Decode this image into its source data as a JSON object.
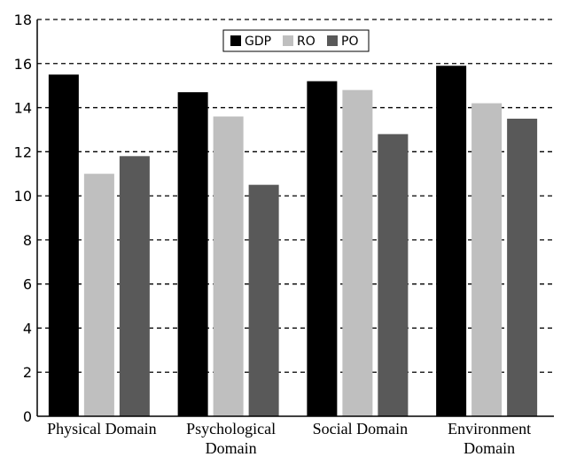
{
  "chart_data": {
    "type": "bar",
    "categories": [
      [
        "Physical Domain"
      ],
      [
        "Psychological",
        "Domain"
      ],
      [
        "Social Domain"
      ],
      [
        "Environment",
        "Domain"
      ]
    ],
    "series": [
      {
        "name": "GDP",
        "color": "#000000",
        "values": [
          15.5,
          14.7,
          15.2,
          15.9
        ]
      },
      {
        "name": "RO",
        "color": "#bfbfbf",
        "values": [
          11.0,
          13.6,
          14.8,
          14.2
        ]
      },
      {
        "name": "PO",
        "color": "#595959",
        "values": [
          11.8,
          10.5,
          12.8,
          13.5
        ]
      }
    ],
    "ylim": [
      0,
      18
    ],
    "yticks": [
      0,
      2,
      4,
      6,
      8,
      10,
      12,
      14,
      16,
      18
    ],
    "grid": true,
    "legend_position": "top-center",
    "title": "",
    "xlabel": "",
    "ylabel": ""
  }
}
